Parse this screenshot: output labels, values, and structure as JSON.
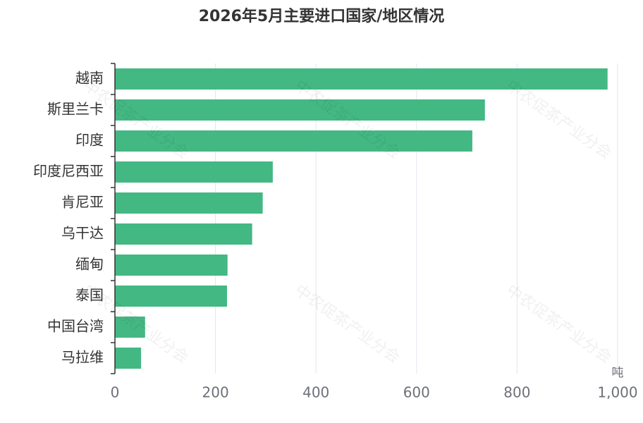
{
  "chart_data": {
    "type": "bar",
    "orientation": "horizontal",
    "title": "2026年5月主要进口国家/地区情况",
    "x_unit": "吨",
    "watermark": "中农促茶产业分会",
    "categories": [
      "越南",
      "斯里兰卡",
      "印度",
      "印度尼西亚",
      "肯尼亚",
      "乌干达",
      "缅甸",
      "泰国",
      "中国台湾",
      "马拉维"
    ],
    "values": [
      980,
      736,
      711,
      314,
      294,
      273,
      224,
      223,
      60,
      52
    ],
    "color": "#43b883",
    "xlim": [
      0,
      1000
    ],
    "xticks": [
      0,
      200,
      400,
      600,
      800,
      {
        "value": 1000,
        "label": "1,000"
      }
    ],
    "grid": true
  }
}
